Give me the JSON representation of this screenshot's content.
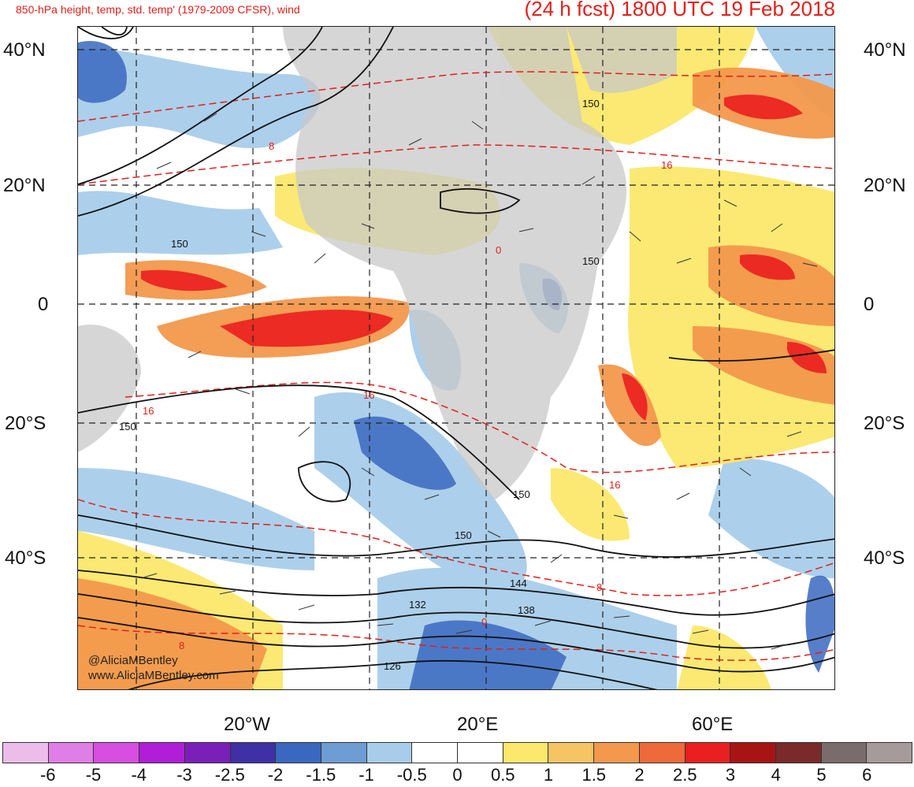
{
  "header": {
    "title_left": "850-hPa height, temp, std. temp' (1979-2009 CFSR), wind",
    "title_right": "(24 h fcst) 1800 UTC 19 Feb 2018"
  },
  "axes": {
    "lat_labels_left": [
      "40°N",
      "20°N",
      "0",
      "20°S",
      "40°S"
    ],
    "lat_labels_right": [
      "40°N",
      "20°N",
      "0",
      "20°S",
      "40°S"
    ],
    "lon_labels": [
      "20°W",
      "20°E",
      "60°E"
    ]
  },
  "colorbar": {
    "colors": [
      "#ecbde8",
      "#e07ee8",
      "#d84ee0",
      "#b01ed8",
      "#7a20b8",
      "#4030a8",
      "#3a68c0",
      "#6e9cd4",
      "#a8cdea",
      "#ffffff",
      "#ffffff",
      "#fbe86c",
      "#f6c463",
      "#f3984c",
      "#ee6a3a",
      "#ea1f1f",
      "#a81414",
      "#7a2a2a",
      "#7a6c6c",
      "#a69a9a"
    ],
    "labels": [
      "-6",
      "-5",
      "-4",
      "-3",
      "-2.5",
      "-2",
      "-1.5",
      "-1",
      "-0.5",
      "0",
      "0.5",
      "1",
      "1.5",
      "2",
      "2.5",
      "3",
      "4",
      "5",
      "6"
    ]
  },
  "contour_labels": {
    "black": [
      "150",
      "150",
      "150",
      "150",
      "150",
      "150",
      "144",
      "138",
      "132",
      "126"
    ],
    "red": [
      "8",
      "16",
      "16",
      "16",
      "16",
      "8",
      "8",
      "0",
      "0"
    ]
  },
  "watermark": {
    "handle": "@AliciaMBentley",
    "url": "www.AliciaMBentley.com"
  }
}
